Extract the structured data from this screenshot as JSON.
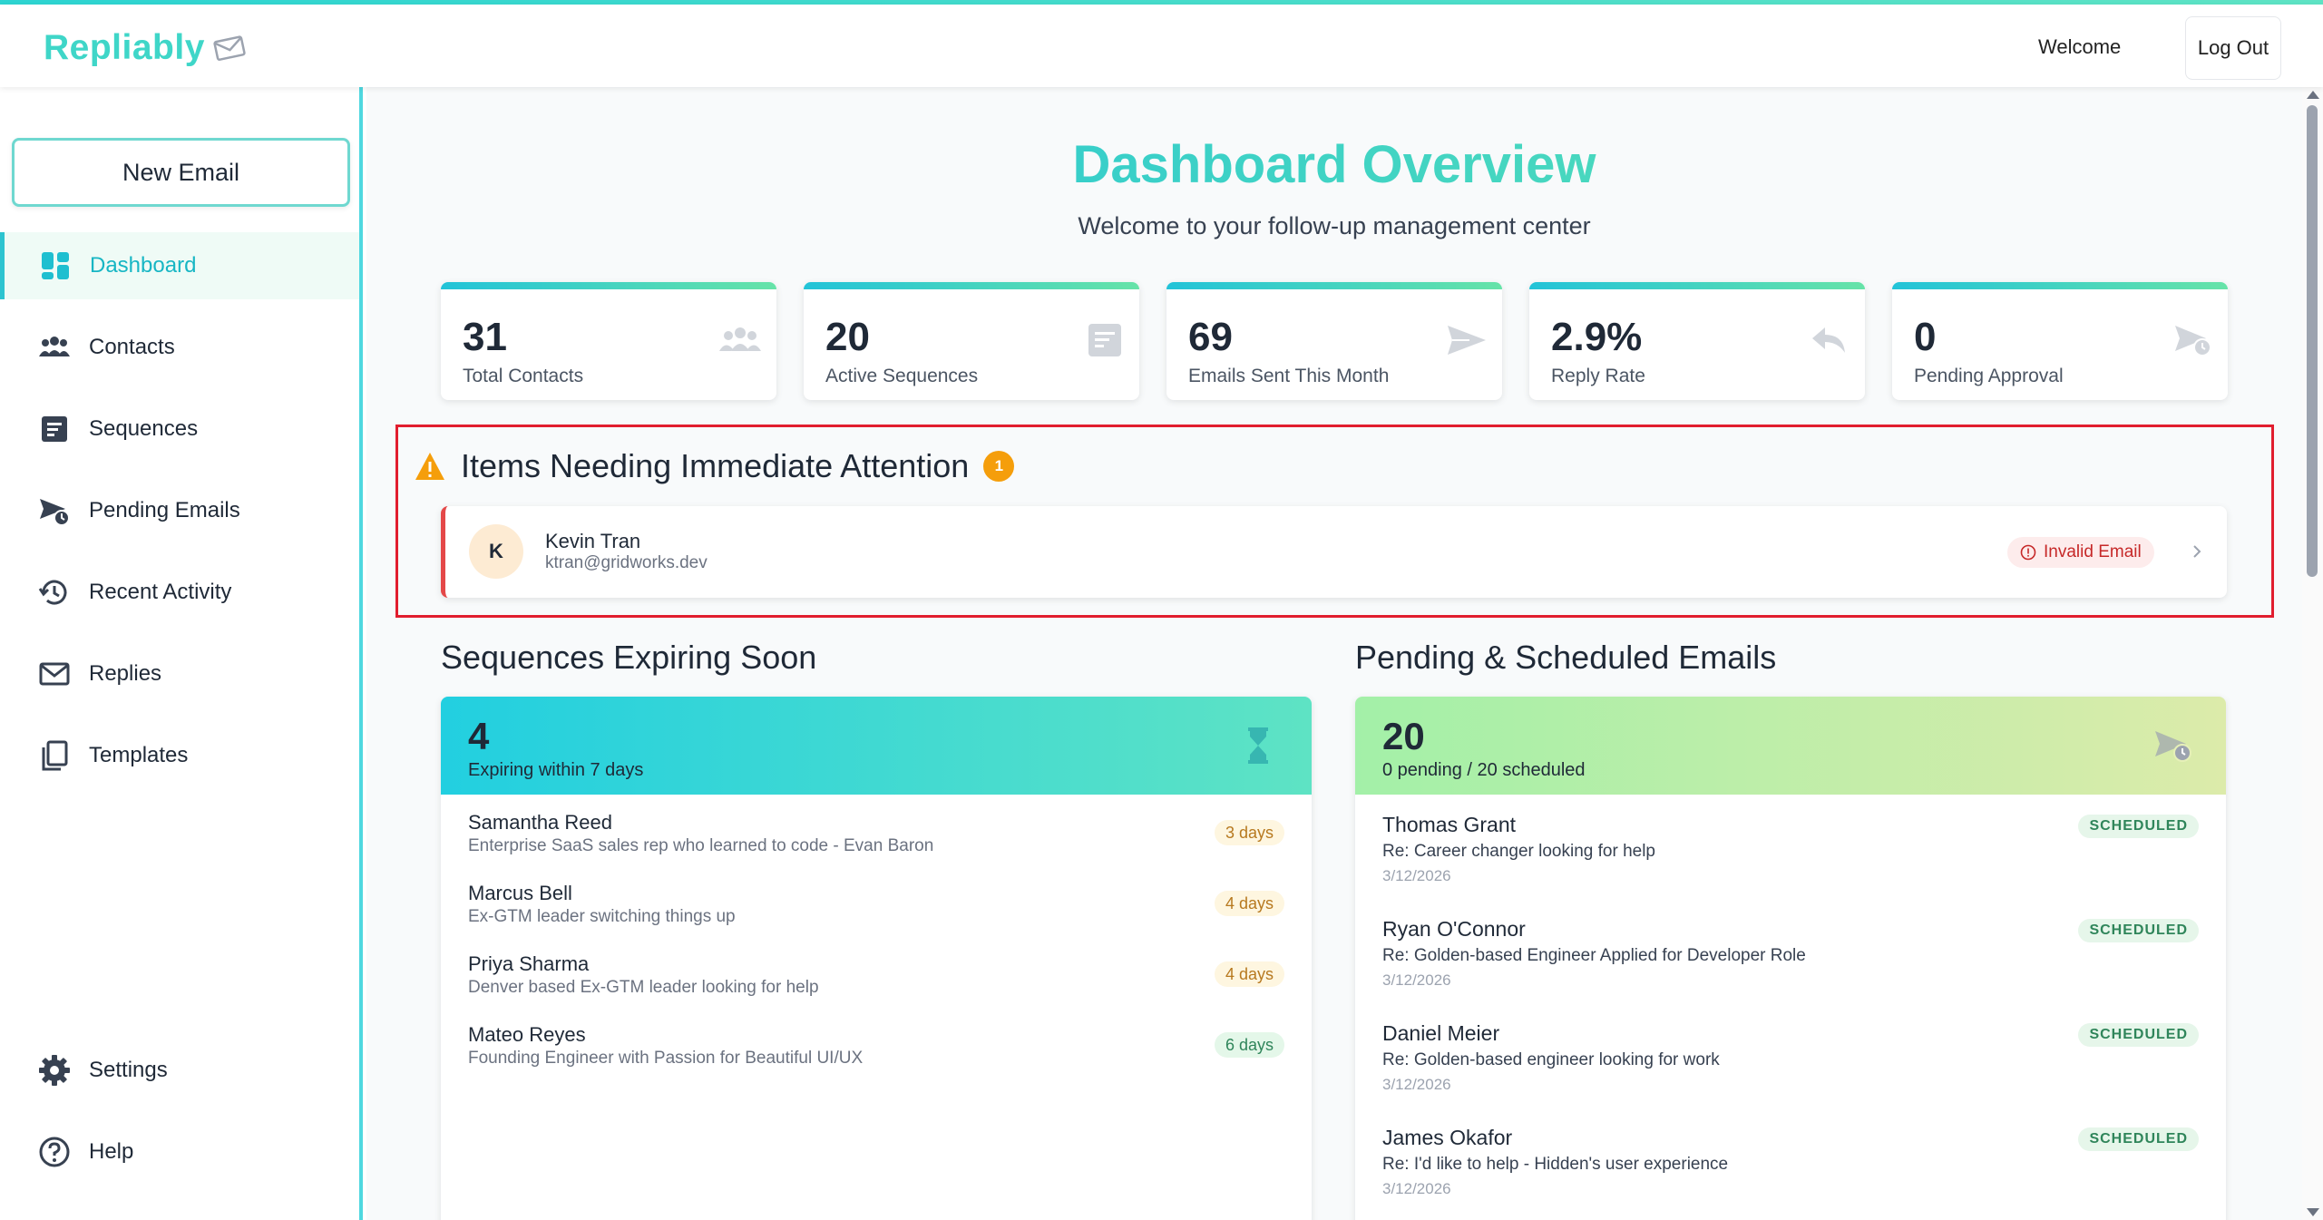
{
  "header": {
    "logo_text": "Repliably",
    "welcome": "Welcome",
    "logout_label": "Log Out"
  },
  "sidebar": {
    "new_email_label": "New Email",
    "items": [
      {
        "label": "Dashboard",
        "icon": "dashboard-icon",
        "active": true
      },
      {
        "label": "Contacts",
        "icon": "users-icon"
      },
      {
        "label": "Sequences",
        "icon": "sequence-icon"
      },
      {
        "label": "Pending Emails",
        "icon": "send-clock-icon"
      },
      {
        "label": "Recent Activity",
        "icon": "history-icon"
      },
      {
        "label": "Replies",
        "icon": "envelope-icon"
      },
      {
        "label": "Templates",
        "icon": "copy-icon"
      },
      {
        "label": "Settings",
        "icon": "gear-icon"
      },
      {
        "label": "Help",
        "icon": "help-icon"
      }
    ]
  },
  "main": {
    "title": "Dashboard Overview",
    "subtitle": "Welcome to your follow-up management center",
    "stats": [
      {
        "value": "31",
        "label": "Total Contacts",
        "icon": "users-icon"
      },
      {
        "value": "20",
        "label": "Active Sequences",
        "icon": "sequence-icon"
      },
      {
        "value": "69",
        "label": "Emails Sent This Month",
        "icon": "paper-plane-icon"
      },
      {
        "value": "2.9%",
        "label": "Reply Rate",
        "icon": "reply-icon"
      },
      {
        "value": "0",
        "label": "Pending Approval",
        "icon": "send-clock-icon"
      }
    ],
    "attention": {
      "title": "Items Needing Immediate Attention",
      "count": "1",
      "items": [
        {
          "initial": "K",
          "name": "Kevin Tran",
          "email": "ktran@gridworks.dev",
          "status": "Invalid Email"
        }
      ]
    },
    "expiring": {
      "title": "Sequences Expiring Soon",
      "count": "4",
      "subtitle": "Expiring within 7 days",
      "items": [
        {
          "name": "Samantha Reed",
          "desc": "Enterprise SaaS sales rep who learned to code - Evan Baron",
          "days": "3 days"
        },
        {
          "name": "Marcus Bell",
          "desc": "Ex-GTM leader switching things up",
          "days": "4 days"
        },
        {
          "name": "Priya Sharma",
          "desc": "Denver based Ex-GTM leader looking for help",
          "days": "4 days"
        },
        {
          "name": "Mateo Reyes",
          "desc": "Founding Engineer with Passion for Beautiful UI/UX",
          "days": "6 days"
        }
      ]
    },
    "pending": {
      "title": "Pending & Scheduled Emails",
      "count": "20",
      "subtitle": "0 pending / 20 scheduled",
      "items": [
        {
          "name": "Thomas Grant",
          "subject": "Re: Career changer looking for help",
          "date": "3/12/2026",
          "status": "SCHEDULED"
        },
        {
          "name": "Ryan O'Connor",
          "subject": "Re: Golden-based Engineer Applied for Developer Role",
          "date": "3/12/2026",
          "status": "SCHEDULED"
        },
        {
          "name": "Daniel Meier",
          "subject": "Re: Golden-based engineer looking for work",
          "date": "3/12/2026",
          "status": "SCHEDULED"
        },
        {
          "name": "James Okafor",
          "subject": "Re: I'd like to help - Hidden's user experience",
          "date": "3/12/2026",
          "status": "SCHEDULED"
        }
      ]
    }
  },
  "colors": {
    "accent": "#2dc4d0",
    "brand": "#3fd6c8",
    "alert": "#e11d2e",
    "warning": "#f59e0b"
  }
}
